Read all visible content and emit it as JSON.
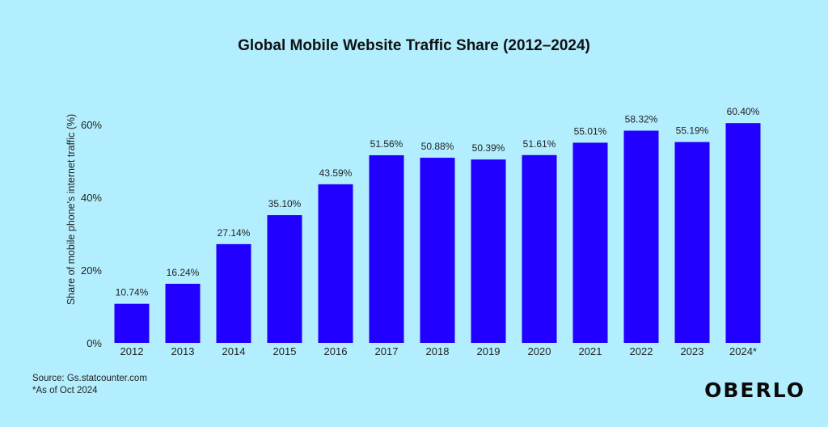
{
  "chart_data": {
    "type": "bar",
    "title": "Global Mobile Website Traffic Share (2012–2024)",
    "ylabel": "Share of mobile phone's internet traffic (%)",
    "xlabel": "",
    "categories": [
      "2012",
      "2013",
      "2014",
      "2015",
      "2016",
      "2017",
      "2018",
      "2019",
      "2020",
      "2021",
      "2022",
      "2023",
      "2024*"
    ],
    "values": [
      10.74,
      16.24,
      27.14,
      35.1,
      43.59,
      51.56,
      50.88,
      50.39,
      51.61,
      55.01,
      58.32,
      55.19,
      60.4
    ],
    "value_labels": [
      "10.74%",
      "16.24%",
      "27.14%",
      "35.10%",
      "43.59%",
      "51.56%",
      "50.88%",
      "50.39%",
      "51.61%",
      "55.01%",
      "58.32%",
      "55.19%",
      "60.40%"
    ],
    "ylim": [
      0,
      60
    ],
    "yticks": [
      0,
      20,
      40,
      60
    ],
    "ytick_labels": [
      "0%",
      "20%",
      "40%",
      "60%"
    ],
    "grid": false,
    "bar_color": "#2200ff"
  },
  "footnotes": {
    "source": "Source: Gs.statcounter.com",
    "note": "*As of Oct 2024"
  },
  "brand": {
    "logo_text": "OBERLO"
  }
}
